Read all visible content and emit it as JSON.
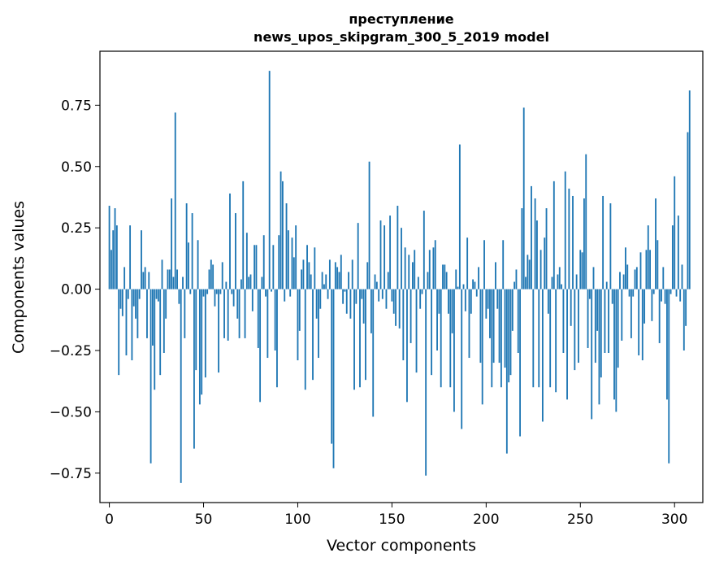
{
  "chart_data": {
    "type": "bar",
    "title_line1": "преступление",
    "title_line2": "news_upos_skipgram_300_5_2019 model",
    "xlabel": "Vector components",
    "ylabel": "Components values",
    "xlim": [
      -5,
      315
    ],
    "ylim": [
      -0.87,
      0.97
    ],
    "xticks": [
      0,
      50,
      100,
      150,
      200,
      250,
      300
    ],
    "yticks": [
      -0.75,
      -0.5,
      -0.25,
      0.0,
      0.25,
      0.5,
      0.75
    ],
    "ytick_labels": [
      "−0.75",
      "−0.50",
      "−0.25",
      "0.00",
      "0.25",
      "0.50",
      "0.75"
    ],
    "bar_color": "#1f77b4",
    "grid": false,
    "values": [
      0.34,
      0.16,
      0.24,
      0.33,
      0.26,
      -0.35,
      -0.08,
      -0.11,
      0.09,
      -0.27,
      -0.04,
      0.26,
      -0.29,
      -0.07,
      -0.12,
      -0.2,
      -0.04,
      0.24,
      0.07,
      0.09,
      -0.2,
      0.07,
      -0.71,
      -0.23,
      -0.41,
      -0.04,
      -0.05,
      -0.35,
      0.12,
      -0.26,
      -0.12,
      0.08,
      0.08,
      0.37,
      0.05,
      0.72,
      0.08,
      -0.06,
      -0.79,
      0.05,
      -0.2,
      0.35,
      0.19,
      -0.02,
      0.31,
      -0.65,
      -0.33,
      0.2,
      -0.47,
      -0.43,
      -0.03,
      -0.36,
      -0.02,
      0.08,
      0.12,
      0.1,
      -0.07,
      -0.02,
      -0.34,
      -0.02,
      0.11,
      -0.2,
      0.03,
      -0.21,
      0.39,
      -0.02,
      -0.07,
      0.31,
      -0.12,
      -0.2,
      0.04,
      0.44,
      -0.2,
      0.23,
      0.05,
      0.06,
      -0.09,
      0.18,
      0.18,
      -0.24,
      -0.46,
      0.05,
      0.22,
      -0.03,
      -0.28,
      0.89,
      -0.01,
      0.18,
      -0.25,
      -0.4,
      0.22,
      0.48,
      0.44,
      -0.05,
      0.35,
      0.24,
      -0.03,
      0.21,
      0.13,
      0.26,
      -0.29,
      -0.17,
      0.08,
      0.12,
      -0.41,
      0.18,
      0.11,
      0.06,
      -0.37,
      0.17,
      -0.12,
      -0.28,
      -0.08,
      0.07,
      0.02,
      0.06,
      -0.04,
      0.12,
      -0.63,
      -0.73,
      0.11,
      0.09,
      0.07,
      0.14,
      -0.06,
      -0.01,
      -0.1,
      0.07,
      -0.12,
      0.12,
      -0.41,
      -0.06,
      0.27,
      -0.4,
      -0.04,
      -0.14,
      -0.37,
      0.11,
      0.52,
      -0.18,
      -0.52,
      0.06,
      0.03,
      -0.05,
      0.28,
      -0.04,
      0.26,
      -0.08,
      0.07,
      0.3,
      -0.05,
      -0.1,
      -0.15,
      0.34,
      -0.16,
      0.25,
      -0.29,
      0.17,
      -0.46,
      0.14,
      -0.22,
      0.11,
      0.16,
      -0.34,
      0.05,
      -0.08,
      -0.02,
      0.32,
      -0.76,
      0.07,
      0.16,
      -0.35,
      0.17,
      0.2,
      -0.25,
      -0.1,
      -0.4,
      0.1,
      0.1,
      0.07,
      -0.1,
      -0.4,
      -0.18,
      -0.5,
      0.08,
      0.01,
      0.59,
      -0.57,
      0.02,
      -0.09,
      0.21,
      -0.28,
      -0.1,
      0.04,
      0.03,
      -0.03,
      0.09,
      -0.3,
      -0.47,
      0.2,
      -0.12,
      -0.08,
      -0.2,
      -0.4,
      -0.3,
      0.11,
      -0.08,
      -0.3,
      -0.4,
      0.2,
      -0.32,
      -0.67,
      -0.38,
      -0.35,
      -0.17,
      0.03,
      0.08,
      -0.26,
      -0.6,
      0.33,
      0.74,
      0.05,
      0.14,
      0.12,
      0.42,
      -0.4,
      0.37,
      0.28,
      -0.4,
      0.16,
      -0.54,
      0.21,
      0.33,
      -0.1,
      -0.4,
      0.05,
      0.44,
      -0.42,
      0.06,
      0.09,
      0.02,
      -0.26,
      0.48,
      -0.45,
      0.41,
      -0.15,
      0.38,
      -0.33,
      0.06,
      -0.3,
      0.16,
      0.15,
      0.37,
      0.55,
      -0.24,
      -0.04,
      -0.53,
      0.09,
      -0.3,
      -0.17,
      -0.47,
      -0.36,
      0.38,
      -0.26,
      0.03,
      -0.26,
      0.35,
      -0.06,
      -0.45,
      -0.5,
      -0.32,
      0.07,
      -0.21,
      0.06,
      0.17,
      0.1,
      -0.03,
      -0.2,
      -0.03,
      0.08,
      0.09,
      -0.27,
      0.15,
      -0.29,
      -0.14,
      0.16,
      0.26,
      0.16,
      -0.13,
      -0.02,
      0.37,
      0.2,
      -0.22,
      -0.05,
      0.09,
      -0.06,
      -0.45,
      -0.71,
      -0.02,
      0.26,
      0.46,
      -0.03,
      0.3,
      -0.05,
      0.1,
      -0.25,
      -0.15,
      0.64,
      0.81
    ]
  }
}
